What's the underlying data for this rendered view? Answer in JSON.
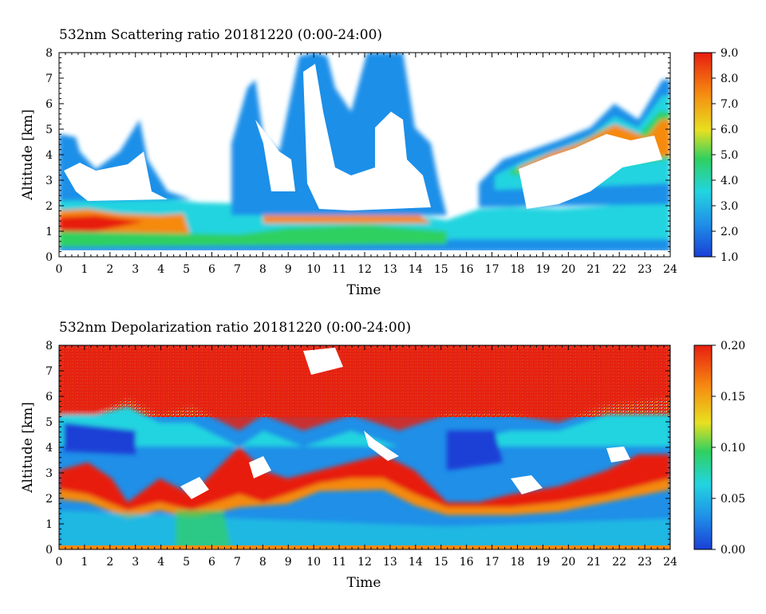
{
  "chart_data": [
    {
      "type": "heatmap",
      "title": "532nm Scattering ratio  20181220 (0:00-24:00)",
      "xlabel": "Time",
      "ylabel": "Altitude [km]",
      "xlim": [
        0,
        24
      ],
      "ylim": [
        0,
        8
      ],
      "x_ticks": [
        "0",
        "1",
        "2",
        "3",
        "4",
        "5",
        "6",
        "7",
        "8",
        "9",
        "10",
        "11",
        "12",
        "13",
        "14",
        "15",
        "16",
        "17",
        "18",
        "19",
        "20",
        "21",
        "22",
        "23",
        "24"
      ],
      "y_ticks": [
        "0",
        "1",
        "2",
        "3",
        "4",
        "5",
        "6",
        "7",
        "8"
      ],
      "colorbar": {
        "min": 1.0,
        "max": 9.0,
        "labels": [
          "1.0",
          "2.0",
          "3.0",
          "4.0",
          "5.0",
          "6.0",
          "7.0",
          "8.0",
          "9.0"
        ]
      },
      "colormap": [
        "#1a3fd6",
        "#1f8fe8",
        "#22d4e0",
        "#2fd060",
        "#e8e020",
        "#f58a10",
        "#e81e10"
      ]
    },
    {
      "type": "heatmap",
      "title": "532nm Depolarization ratio  20181220 (0:00-24:00)",
      "xlabel": "Time",
      "ylabel": "Altitude [km]",
      "xlim": [
        0,
        24
      ],
      "ylim": [
        0,
        8
      ],
      "x_ticks": [
        "0",
        "1",
        "2",
        "3",
        "4",
        "5",
        "6",
        "7",
        "8",
        "9",
        "10",
        "11",
        "12",
        "13",
        "14",
        "15",
        "16",
        "17",
        "18",
        "19",
        "20",
        "21",
        "22",
        "23",
        "24"
      ],
      "y_ticks": [
        "0",
        "1",
        "2",
        "3",
        "4",
        "5",
        "6",
        "7",
        "8"
      ],
      "colorbar": {
        "min": 0.0,
        "max": 0.2,
        "labels": [
          "0.00",
          "0.05",
          "0.10",
          "0.15",
          "0.20"
        ]
      },
      "colormap": [
        "#1a3fd6",
        "#1f8fe8",
        "#22d4e0",
        "#2fd060",
        "#e8e020",
        "#f58a10",
        "#e81e10"
      ]
    }
  ]
}
